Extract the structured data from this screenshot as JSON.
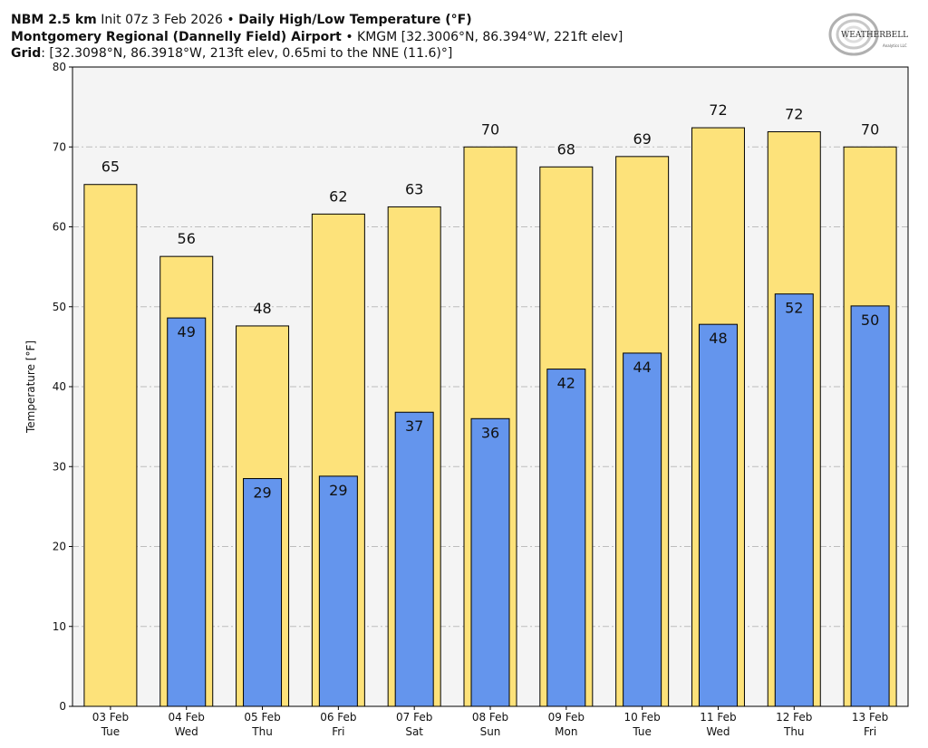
{
  "header": {
    "line1_bold": "NBM 2.5 km",
    "line1_init": "Init 07z 3 Feb 2026",
    "line1_sep": "•",
    "line1_title": "Daily High/Low Temperature (°F)",
    "line2_bold": "Montgomery Regional (Dannelly Field) Airport",
    "line2_sep": "•",
    "line2_rest": "KMGM [32.3006°N, 86.394°W, 221ft elev]",
    "line3_bold": "Grid",
    "line3_rest": ": [32.3098°N, 86.3918°W, 213ft elev, 0.65mi to the NNE (11.6)°]"
  },
  "logo": {
    "text": "WEATHERBELL",
    "subtext": "Analytics LLC"
  },
  "colors": {
    "high": "#fde27a",
    "low": "#6495ed",
    "plot_bg": "#f4f4f4",
    "grid": "#bdbdbd"
  },
  "chart_data": {
    "type": "bar",
    "title": "Daily High/Low Temperature (°F)",
    "xlabel": "",
    "ylabel": "Temperature [°F]",
    "ylim": [
      0,
      80
    ],
    "yticks": [
      0,
      10,
      20,
      30,
      40,
      50,
      60,
      70,
      80
    ],
    "grid": true,
    "categories": [
      {
        "date": "03 Feb",
        "day": "Tue"
      },
      {
        "date": "04 Feb",
        "day": "Wed"
      },
      {
        "date": "05 Feb",
        "day": "Thu"
      },
      {
        "date": "06 Feb",
        "day": "Fri"
      },
      {
        "date": "07 Feb",
        "day": "Sat"
      },
      {
        "date": "08 Feb",
        "day": "Sun"
      },
      {
        "date": "09 Feb",
        "day": "Mon"
      },
      {
        "date": "10 Feb",
        "day": "Tue"
      },
      {
        "date": "11 Feb",
        "day": "Wed"
      },
      {
        "date": "12 Feb",
        "day": "Thu"
      },
      {
        "date": "13 Feb",
        "day": "Fri"
      }
    ],
    "series": [
      {
        "name": "High",
        "values": [
          65.3,
          56.3,
          47.6,
          61.6,
          62.5,
          70.0,
          67.5,
          68.8,
          72.4,
          71.9,
          70.0
        ],
        "labels": [
          "65",
          "56",
          "48",
          "62",
          "63",
          "70",
          "68",
          "69",
          "72",
          "72",
          "70"
        ]
      },
      {
        "name": "Low",
        "values": [
          null,
          48.6,
          28.5,
          28.8,
          36.8,
          36.0,
          42.2,
          44.2,
          47.8,
          51.6,
          50.1
        ],
        "labels": [
          "",
          "49",
          "29",
          "29",
          "37",
          "36",
          "42",
          "44",
          "48",
          "52",
          "50"
        ]
      }
    ]
  }
}
